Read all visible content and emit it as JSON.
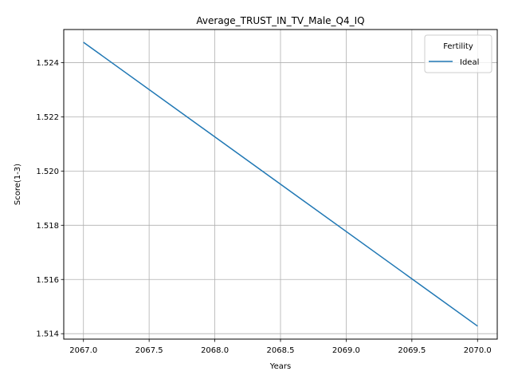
{
  "chart_data": {
    "type": "line",
    "title": "Average_TRUST_IN_TV_Male_Q4_IQ",
    "xlabel": "Years",
    "ylabel": "Score(1-3)",
    "xlim": [
      2066.85,
      2070.15
    ],
    "ylim": [
      1.5138,
      1.52522
    ],
    "xticks": [
      2067.0,
      2067.5,
      2068.0,
      2068.5,
      2069.0,
      2069.5,
      2070.0
    ],
    "xtick_labels": [
      "2067.0",
      "2067.5",
      "2068.0",
      "2068.5",
      "2069.0",
      "2069.5",
      "2070.0"
    ],
    "yticks": [
      1.514,
      1.516,
      1.518,
      1.52,
      1.522,
      1.524
    ],
    "ytick_labels": [
      "1.514",
      "1.516",
      "1.518",
      "1.520",
      "1.522",
      "1.524"
    ],
    "grid": true,
    "legend": {
      "title": "Fertility",
      "position": "top-right"
    },
    "series": [
      {
        "name": "Ideal",
        "color": "#1f77b4",
        "x": [
          2067,
          2070
        ],
        "y": [
          1.52475,
          1.51428
        ]
      }
    ]
  }
}
